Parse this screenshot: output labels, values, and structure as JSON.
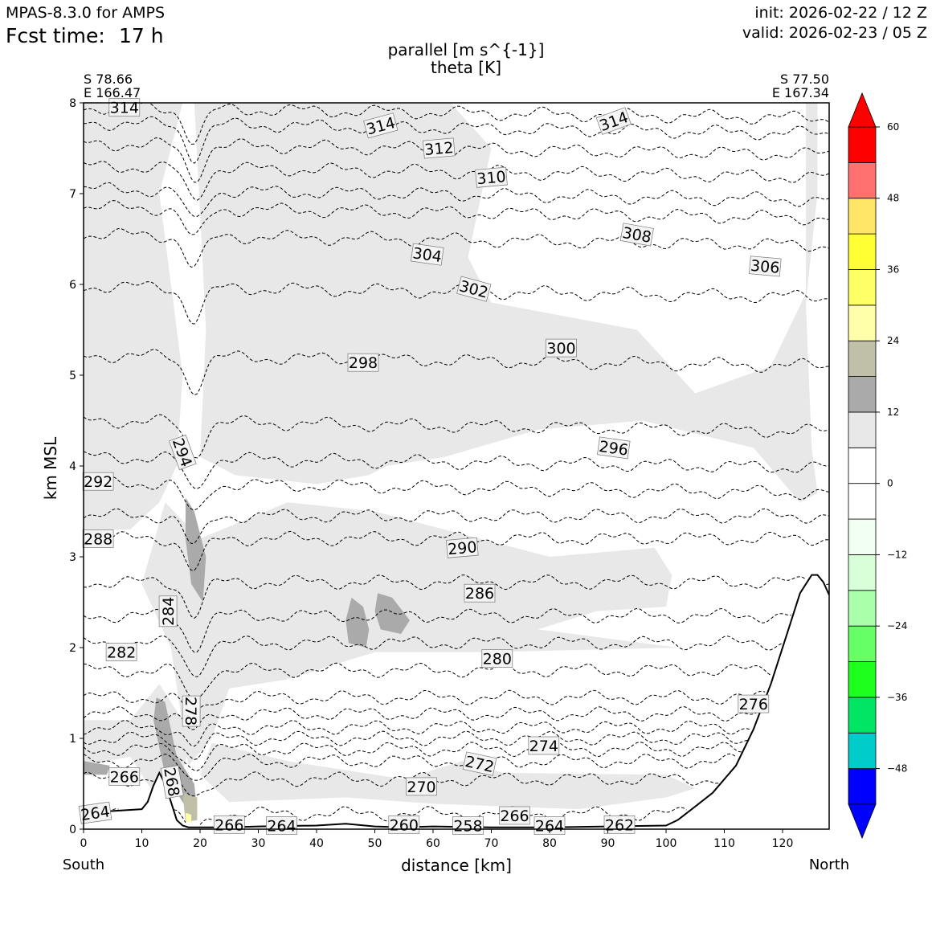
{
  "header": {
    "model": "MPAS-8.3.0 for AMPS",
    "fcst_label": "Fcst time:",
    "fcst_value": "17 h",
    "init": "init: 2026-02-22 / 12 Z",
    "valid": "valid: 2026-02-23 / 05 Z"
  },
  "chart_data": {
    "type": "cross-section",
    "title_line1": "parallel [m s^{-1}]",
    "title_line2": "theta [K]",
    "start_point": {
      "lat": "S 78.66",
      "lon": "E 166.47"
    },
    "end_point": {
      "lat": "S 77.50",
      "lon": "E 167.34"
    },
    "xlabel": "distance [km]",
    "ylabel": "km MSL",
    "x_left_label": "South",
    "x_right_label": "North",
    "xlim": [
      0,
      128
    ],
    "ylim": [
      0,
      8
    ],
    "xticks": [
      0,
      10,
      20,
      30,
      40,
      50,
      60,
      70,
      80,
      90,
      100,
      110,
      120
    ],
    "yticks": [
      0,
      1,
      2,
      3,
      4,
      5,
      6,
      7,
      8
    ],
    "colorbar": {
      "ticks": [
        60,
        48,
        36,
        24,
        12,
        0,
        -12,
        -24,
        -36,
        -48
      ],
      "tick_labels": [
        "60",
        "48",
        "36",
        "24",
        "12",
        "0",
        "−12",
        "−24",
        "−36",
        "−48"
      ],
      "levels": [
        -54,
        -48,
        -42,
        -36,
        -30,
        -24,
        -18,
        -12,
        -6,
        0,
        6,
        12,
        18,
        24,
        30,
        36,
        42,
        48,
        54,
        60
      ],
      "colors": [
        "#0000ff",
        "#00cccc",
        "#00e664",
        "#1eff1e",
        "#66ff66",
        "#aaffaa",
        "#d9ffd9",
        "#f0fff0",
        "#ffffff",
        "#ffffff",
        "#e8e8e8",
        "#aaaaaa",
        "#c0c0a8",
        "#ffffaa",
        "#ffff66",
        "#ffff33",
        "#ffe566",
        "#ff7070",
        "#ff0000"
      ],
      "extend_low": "#0000ff",
      "extend_high": "#ff0000"
    },
    "terrain": [
      [
        0,
        0.18
      ],
      [
        5,
        0.2
      ],
      [
        10,
        0.22
      ],
      [
        11,
        0.3
      ],
      [
        12,
        0.48
      ],
      [
        13,
        0.62
      ],
      [
        14,
        0.5
      ],
      [
        15,
        0.3
      ],
      [
        16,
        0.1
      ],
      [
        17,
        0.04
      ],
      [
        18,
        0.02
      ],
      [
        20,
        0.02
      ],
      [
        25,
        0.02
      ],
      [
        30,
        0.03
      ],
      [
        40,
        0.04
      ],
      [
        45,
        0.06
      ],
      [
        50,
        0.03
      ],
      [
        55,
        0.02
      ],
      [
        60,
        0.03
      ],
      [
        70,
        0.02
      ],
      [
        80,
        0.02
      ],
      [
        90,
        0.03
      ],
      [
        100,
        0.04
      ],
      [
        102,
        0.1
      ],
      [
        105,
        0.25
      ],
      [
        108,
        0.4
      ],
      [
        112,
        0.7
      ],
      [
        115,
        1.1
      ],
      [
        118,
        1.6
      ],
      [
        121,
        2.2
      ],
      [
        123,
        2.6
      ],
      [
        125,
        2.8
      ],
      [
        126,
        2.8
      ],
      [
        127,
        2.72
      ],
      [
        128,
        2.58
      ]
    ],
    "theta_contours": [
      {
        "level": 264,
        "base": 0.17
      },
      {
        "level": 266,
        "base": 0.55
      },
      {
        "level": 268,
        "base": 0.75
      },
      {
        "level": 270,
        "base": 0.88
      },
      {
        "level": 272,
        "base": 1.0
      },
      {
        "level": 274,
        "base": 1.12
      },
      {
        "level": 276,
        "base": 1.27
      },
      {
        "level": 278,
        "base": 1.45
      },
      {
        "level": 280,
        "base": 1.75
      },
      {
        "level": 282,
        "base": 2.05
      },
      {
        "level": 284,
        "base": 2.35
      },
      {
        "level": 286,
        "base": 2.72
      },
      {
        "level": 288,
        "base": 3.2
      },
      {
        "level": 290,
        "base": 3.45
      },
      {
        "level": 292,
        "base": 3.82
      },
      {
        "level": 294,
        "base": 4.1
      },
      {
        "level": 296,
        "base": 4.5
      },
      {
        "level": 298,
        "base": 5.22
      },
      {
        "level": 300,
        "base": 5.98
      },
      {
        "level": 302,
        "base": 6.55
      },
      {
        "level": 304,
        "base": 6.85
      },
      {
        "level": 306,
        "base": 7.05
      },
      {
        "level": 308,
        "base": 7.3
      },
      {
        "level": 310,
        "base": 7.55
      },
      {
        "level": 312,
        "base": 7.78
      },
      {
        "level": 314,
        "base": 7.95
      }
    ],
    "contour_labels": [
      {
        "text": "314",
        "x": 7,
        "y": 7.95,
        "rot": 0
      },
      {
        "text": "314",
        "x": 51,
        "y": 7.75,
        "rot": -15
      },
      {
        "text": "314",
        "x": 91,
        "y": 7.8,
        "rot": -20
      },
      {
        "text": "312",
        "x": 61,
        "y": 7.5,
        "rot": -5
      },
      {
        "text": "310",
        "x": 70,
        "y": 7.18,
        "rot": -5
      },
      {
        "text": "308",
        "x": 95,
        "y": 6.55,
        "rot": 10
      },
      {
        "text": "306",
        "x": 117,
        "y": 6.2,
        "rot": 5
      },
      {
        "text": "304",
        "x": 59,
        "y": 6.33,
        "rot": 8
      },
      {
        "text": "302",
        "x": 67,
        "y": 5.95,
        "rot": 15
      },
      {
        "text": "300",
        "x": 82,
        "y": 5.3,
        "rot": 0
      },
      {
        "text": "298",
        "x": 48,
        "y": 5.14,
        "rot": 0
      },
      {
        "text": "296",
        "x": 91,
        "y": 4.2,
        "rot": 8
      },
      {
        "text": "294",
        "x": 17,
        "y": 4.15,
        "rot": 70
      },
      {
        "text": "292",
        "x": 2.5,
        "y": 3.83,
        "rot": 0
      },
      {
        "text": "290",
        "x": 65,
        "y": 3.1,
        "rot": -5
      },
      {
        "text": "288",
        "x": 2.5,
        "y": 3.2,
        "rot": 0
      },
      {
        "text": "286",
        "x": 68,
        "y": 2.6,
        "rot": 0
      },
      {
        "text": "284",
        "x": 14.5,
        "y": 2.4,
        "rot": -90
      },
      {
        "text": "282",
        "x": 6.5,
        "y": 1.95,
        "rot": 0
      },
      {
        "text": "280",
        "x": 71,
        "y": 1.88,
        "rot": 0
      },
      {
        "text": "278",
        "x": 18.5,
        "y": 1.3,
        "rot": 90
      },
      {
        "text": "276",
        "x": 115,
        "y": 1.38,
        "rot": 0
      },
      {
        "text": "274",
        "x": 79,
        "y": 0.92,
        "rot": 0
      },
      {
        "text": "272",
        "x": 68,
        "y": 0.72,
        "rot": 12
      },
      {
        "text": "270",
        "x": 58,
        "y": 0.47,
        "rot": 0
      },
      {
        "text": "268",
        "x": 15.2,
        "y": 0.52,
        "rot": 80
      },
      {
        "text": "266",
        "x": 7,
        "y": 0.58,
        "rot": 0
      },
      {
        "text": "266",
        "x": 25,
        "y": 0.05,
        "rot": 0
      },
      {
        "text": "266",
        "x": 74,
        "y": 0.15,
        "rot": 0
      },
      {
        "text": "264",
        "x": 2,
        "y": 0.18,
        "rot": -8
      },
      {
        "text": "264",
        "x": 34,
        "y": 0.04,
        "rot": 0
      },
      {
        "text": "264",
        "x": 80,
        "y": 0.04,
        "rot": 0
      },
      {
        "text": "262",
        "x": 92,
        "y": 0.05,
        "rot": 0
      },
      {
        "text": "260",
        "x": 55,
        "y": 0.05,
        "rot": 0
      },
      {
        "text": "258",
        "x": 66,
        "y": 0.04,
        "rot": 0
      }
    ],
    "wind_regions": [
      {
        "class": "6-12",
        "color": "#e8e8e8",
        "pts": [
          [
            0,
            8
          ],
          [
            17,
            8
          ],
          [
            13,
            7
          ],
          [
            15,
            6
          ],
          [
            17,
            5
          ],
          [
            16,
            4
          ],
          [
            13,
            3.6
          ],
          [
            8,
            3.3
          ],
          [
            0,
            3.3
          ]
        ]
      },
      {
        "class": "6-12",
        "color": "#e8e8e8",
        "pts": [
          [
            19,
            8
          ],
          [
            63,
            8
          ],
          [
            70,
            7.5
          ],
          [
            66,
            6.3
          ],
          [
            70,
            5.8
          ],
          [
            95,
            5.5
          ],
          [
            105,
            4.8
          ],
          [
            118,
            5.1
          ],
          [
            124,
            5.9
          ],
          [
            124,
            8
          ],
          [
            126,
            8
          ],
          [
            126,
            7
          ],
          [
            124,
            5.8
          ],
          [
            125,
            4.2
          ],
          [
            126,
            3.7
          ],
          [
            123,
            3.6
          ],
          [
            115,
            4.2
          ],
          [
            96,
            4.5
          ],
          [
            78,
            4.4
          ],
          [
            62,
            4.1
          ],
          [
            52,
            4.0
          ],
          [
            49,
            3.9
          ],
          [
            40,
            3.8
          ],
          [
            26,
            3.9
          ],
          [
            20,
            4.1
          ],
          [
            21,
            5.5
          ],
          [
            20,
            6.8
          ]
        ]
      },
      {
        "class": "6-12",
        "color": "#e8e8e8",
        "pts": [
          [
            14,
            3.6
          ],
          [
            20,
            3.2
          ],
          [
            35,
            3.6
          ],
          [
            50,
            3.5
          ],
          [
            62,
            3.3
          ],
          [
            80,
            3.0
          ],
          [
            98,
            3.1
          ],
          [
            101,
            2.8
          ],
          [
            100,
            2.45
          ],
          [
            88,
            2.4
          ],
          [
            78,
            2.2
          ],
          [
            102,
            2.0
          ],
          [
            70,
            1.95
          ],
          [
            50,
            1.95
          ],
          [
            35,
            1.65
          ],
          [
            25,
            1.55
          ],
          [
            22,
            1.0
          ],
          [
            18,
            0.7
          ],
          [
            15,
            2.0
          ],
          [
            10,
            2.7
          ]
        ]
      },
      {
        "class": "6-12",
        "color": "#e8e8e8",
        "pts": [
          [
            0,
            1.2
          ],
          [
            8,
            1.2
          ],
          [
            13,
            1.6
          ],
          [
            17,
            1.2
          ],
          [
            18,
            0.85
          ],
          [
            16,
            0.45
          ],
          [
            12,
            0.4
          ],
          [
            8,
            0.8
          ],
          [
            0,
            0.7
          ]
        ]
      },
      {
        "class": "6-12",
        "color": "#e8e8e8",
        "pts": [
          [
            22,
            0.95
          ],
          [
            35,
            0.75
          ],
          [
            55,
            0.55
          ],
          [
            65,
            0.75
          ],
          [
            72,
            0.62
          ],
          [
            100,
            0.6
          ],
          [
            105,
            0.45
          ],
          [
            100,
            0.35
          ],
          [
            85,
            0.22
          ],
          [
            60,
            0.28
          ],
          [
            45,
            0.35
          ],
          [
            25,
            0.3
          ],
          [
            20,
            0.6
          ]
        ]
      },
      {
        "class": "12-18",
        "color": "#aaaaaa",
        "pts": [
          [
            17.5,
            3.65
          ],
          [
            19,
            3.5
          ],
          [
            21,
            3.0
          ],
          [
            20.5,
            2.5
          ],
          [
            18.5,
            2.7
          ],
          [
            17.5,
            3.2
          ]
        ]
      },
      {
        "class": "12-18",
        "color": "#aaaaaa",
        "pts": [
          [
            46,
            2.55
          ],
          [
            48,
            2.45
          ],
          [
            49,
            2.2
          ],
          [
            48.5,
            2.0
          ],
          [
            45.5,
            2.05
          ],
          [
            45,
            2.3
          ]
        ]
      },
      {
        "class": "12-18",
        "color": "#aaaaaa",
        "pts": [
          [
            50.5,
            2.6
          ],
          [
            53,
            2.55
          ],
          [
            56,
            2.3
          ],
          [
            54.5,
            2.15
          ],
          [
            51,
            2.2
          ],
          [
            50,
            2.4
          ]
        ]
      },
      {
        "class": "12-18",
        "color": "#aaaaaa",
        "pts": [
          [
            12.5,
            1.45
          ],
          [
            14,
            1.4
          ],
          [
            16,
            0.8
          ],
          [
            19,
            0.5
          ],
          [
            19.5,
            0.2
          ],
          [
            17.5,
            0.25
          ],
          [
            14,
            0.6
          ],
          [
            12,
            1.2
          ]
        ]
      },
      {
        "class": "12-18",
        "color": "#aaaaaa",
        "pts": [
          [
            0,
            0.75
          ],
          [
            4.5,
            0.7
          ],
          [
            4,
            0.6
          ],
          [
            0,
            0.6
          ]
        ]
      },
      {
        "class": "18-24",
        "color": "#c0c0a8",
        "pts": [
          [
            17,
            0.4
          ],
          [
            19.5,
            0.35
          ],
          [
            19.5,
            0.1
          ],
          [
            17.5,
            0.08
          ]
        ]
      },
      {
        "class": "24-30",
        "color": "#ffffaa",
        "pts": [
          [
            17.5,
            0.18
          ],
          [
            18.5,
            0.16
          ],
          [
            18.5,
            0.08
          ],
          [
            17.6,
            0.08
          ]
        ]
      }
    ]
  }
}
